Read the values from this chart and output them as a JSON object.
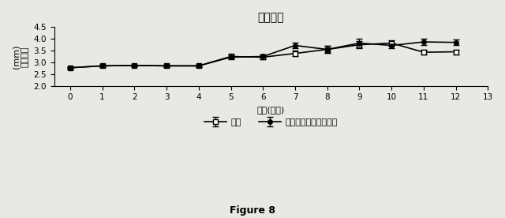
{
  "title": "踵サイズ",
  "xlabel": "時間(日数)",
  "ylabel_top": "(mm)",
  "ylabel_bottom": "踵サイズ",
  "ylim": [
    2.0,
    4.5
  ],
  "xlim": [
    -0.5,
    13
  ],
  "xticks": [
    0,
    1,
    2,
    3,
    4,
    5,
    6,
    7,
    8,
    9,
    10,
    11,
    12,
    13
  ],
  "yticks": [
    2.0,
    2.5,
    3.0,
    3.5,
    4.0,
    4.5
  ],
  "series1_label": "細胞",
  "series2_label": "細胞および濃縮分泌物",
  "series1_x": [
    0,
    1,
    2,
    3,
    4,
    5,
    6,
    7,
    8,
    9,
    10,
    11,
    12
  ],
  "series1_y": [
    2.77,
    2.85,
    2.87,
    2.85,
    2.85,
    3.25,
    3.22,
    3.38,
    3.55,
    3.75,
    3.82,
    3.43,
    3.45
  ],
  "series1_err": [
    0.03,
    0.04,
    0.04,
    0.04,
    0.04,
    0.1,
    0.1,
    0.12,
    0.15,
    0.15,
    0.12,
    0.1,
    0.1
  ],
  "series2_x": [
    0,
    1,
    2,
    3,
    4,
    5,
    6,
    7,
    8,
    9,
    10,
    11,
    12
  ],
  "series2_y": [
    2.77,
    2.85,
    2.87,
    2.85,
    2.85,
    3.22,
    3.25,
    3.72,
    3.55,
    3.82,
    3.72,
    3.87,
    3.85
  ],
  "series2_err": [
    0.03,
    0.04,
    0.04,
    0.04,
    0.04,
    0.1,
    0.1,
    0.12,
    0.15,
    0.18,
    0.12,
    0.12,
    0.12
  ],
  "line_color": "#000000",
  "marker1": "s",
  "marker2": "o",
  "figure8_label": "Figure 8",
  "background_color": "#e8e8e4"
}
